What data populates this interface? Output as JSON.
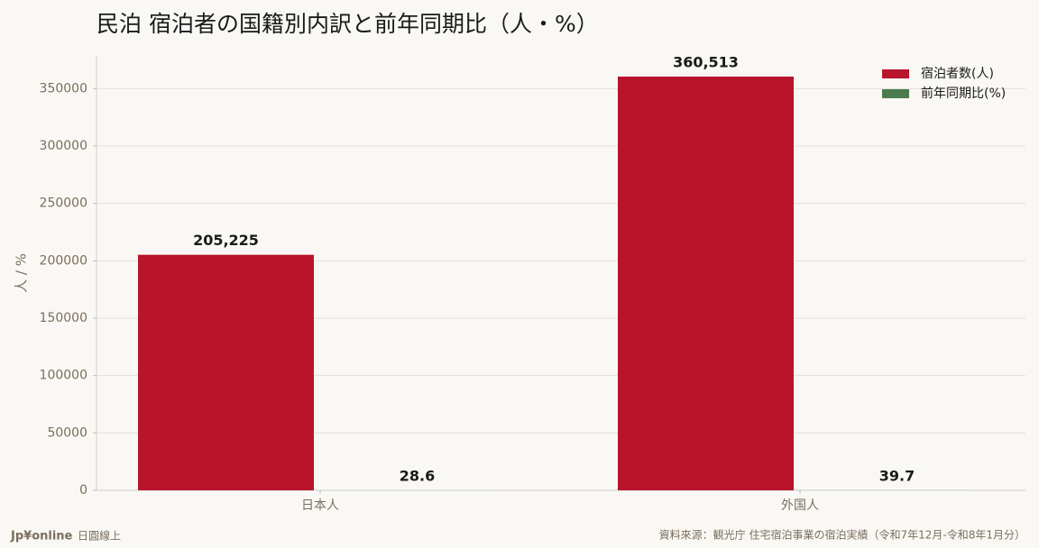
{
  "chart_data": {
    "type": "bar",
    "title": "民泊 宿泊者の国籍別内訳と前年同期比（人・%）",
    "y_label": "人 / %",
    "categories": [
      "日本人",
      "外国人"
    ],
    "series": [
      {
        "name": "宿泊者数(人)",
        "color": "#b8142b",
        "values": [
          205225,
          360513
        ],
        "value_labels": [
          "205,225",
          "360,513"
        ]
      },
      {
        "name": "前年同期比(%)",
        "color": "#4a7c4e",
        "values": [
          28.6,
          39.7
        ]
      }
    ],
    "ylim": [
      0,
      378539
    ],
    "yticks": [
      0,
      50000,
      100000,
      150000,
      200000,
      250000,
      300000,
      350000
    ],
    "grid": true,
    "legend": "upper right"
  },
  "footer": {
    "brand": "Jp¥online",
    "brand_sub": "日圓線上",
    "source": "資料來源：観光庁 住宅宿泊事業の宿泊実績（令和7年12月-令和8年1月分）"
  }
}
